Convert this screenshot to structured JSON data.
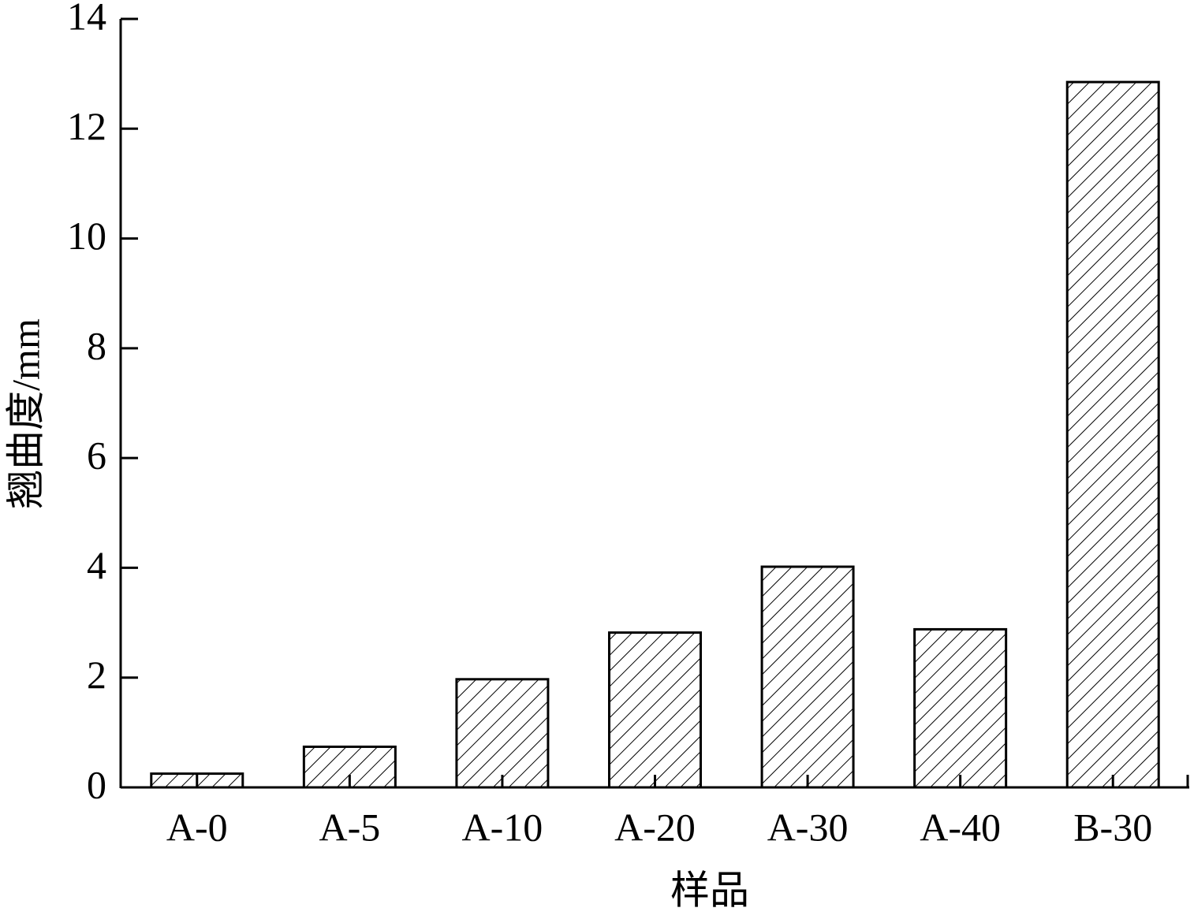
{
  "chart_data": {
    "type": "bar",
    "x_label": "样品",
    "y_label": "翘曲度/mm",
    "categories": [
      "A-0",
      "A-5",
      "A-10",
      "A-20",
      "A-30",
      "A-40",
      "B-30"
    ],
    "values": [
      0.25,
      0.74,
      1.97,
      2.82,
      4.02,
      2.88,
      12.85
    ],
    "color": "#000000",
    "ylim": [
      0,
      14
    ],
    "yticks": [
      0,
      2,
      4,
      6,
      8,
      10,
      12,
      14
    ]
  }
}
